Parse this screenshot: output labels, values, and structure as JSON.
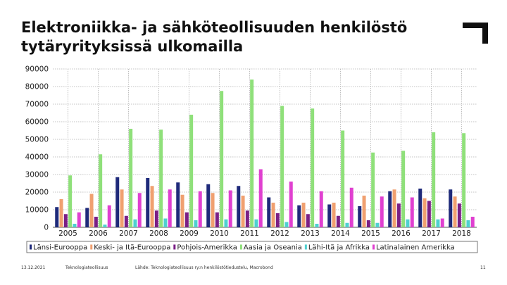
{
  "slide": {
    "title_line1": "Elektroniikka- ja sähköteollisuuden henkilöstö",
    "title_line2": "tytäryrityksissä ulkomailla",
    "footer_date": "13.12.2021",
    "footer_org": "Teknologiateollisuus",
    "footer_source": "Lähde: Teknologiateollisuus ry:n henkilöstötiedustelu, Macrobond",
    "page_number": "11",
    "logo_icon": "corner-bracket-logo-icon"
  },
  "chart_data": {
    "type": "bar",
    "title": "",
    "xlabel": "",
    "ylabel": "",
    "ylim": [
      0,
      90000
    ],
    "yticks": [
      0,
      10000,
      20000,
      30000,
      40000,
      50000,
      60000,
      70000,
      80000,
      90000
    ],
    "ytick_labels": [
      "0",
      "10000",
      "20000",
      "30000",
      "40000",
      "50000",
      "60000",
      "70000",
      "80000",
      "90000"
    ],
    "grid": true,
    "legend_position": "bottom",
    "categories": [
      "2005",
      "2006",
      "2007",
      "2008",
      "2009",
      "2010",
      "2011",
      "2012",
      "2013",
      "2014",
      "2015",
      "2016",
      "2017",
      "2018"
    ],
    "series": [
      {
        "name": "Länsi-Eurooppa",
        "color": "#1f2a7a",
        "values": [
          11500,
          11000,
          28500,
          28000,
          25500,
          24500,
          23500,
          17000,
          12500,
          13000,
          12000,
          20500,
          22000,
          21500
        ]
      },
      {
        "name": "Keski- ja Itä-Eurooppa",
        "color": "#f0a070",
        "values": [
          16000,
          19000,
          21500,
          23500,
          18500,
          19500,
          18000,
          14000,
          14000,
          14000,
          18000,
          21500,
          16500,
          17500
        ]
      },
      {
        "name": "Pohjois-Amerikka",
        "color": "#7b1f86",
        "values": [
          7500,
          6000,
          6500,
          9500,
          8500,
          8500,
          9500,
          8000,
          7500,
          6500,
          4000,
          13500,
          15000,
          13500
        ]
      },
      {
        "name": "Aasia ja Oseania",
        "color": "#8fe07a",
        "values": [
          29500,
          41500,
          56000,
          55500,
          64000,
          77500,
          84000,
          69000,
          67500,
          55000,
          42500,
          43500,
          54000,
          53500
        ]
      },
      {
        "name": "Lähi-Itä ja Afrikka",
        "color": "#4fd0d0",
        "values": [
          2000,
          1500,
          4500,
          5000,
          4000,
          4500,
          4500,
          3000,
          2000,
          2500,
          2500,
          4500,
          4500,
          4000
        ]
      },
      {
        "name": "Latinalainen Amerikka",
        "color": "#e040d0",
        "values": [
          8500,
          12500,
          19500,
          21500,
          20500,
          21000,
          33000,
          26000,
          20500,
          22500,
          17500,
          17000,
          5000,
          6000
        ]
      }
    ]
  }
}
